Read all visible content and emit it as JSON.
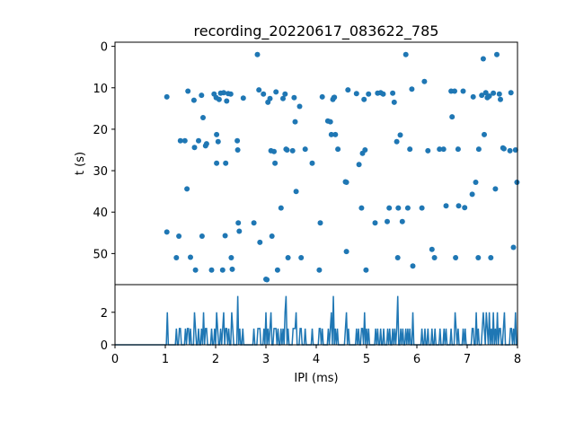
{
  "title": "recording_20220617_083622_785",
  "colors": {
    "series": "#1f77b4",
    "axes": "#000000",
    "background": "#ffffff"
  },
  "chart_data": [
    {
      "type": "scatter",
      "xlabel": "",
      "ylabel": "t (s)",
      "xlim": [
        0,
        8
      ],
      "ylim": [
        57.5,
        -1.0
      ],
      "y_inverted": true,
      "yticks": [
        0,
        10,
        20,
        30,
        40,
        50
      ],
      "grid": false,
      "points": [
        [
          1.03,
          12.2
        ],
        [
          1.03,
          44.8
        ],
        [
          1.22,
          51.0
        ],
        [
          1.27,
          45.8
        ],
        [
          1.3,
          22.8
        ],
        [
          1.39,
          22.8
        ],
        [
          1.43,
          34.4
        ],
        [
          1.45,
          10.8
        ],
        [
          1.5,
          50.9
        ],
        [
          1.57,
          13.0
        ],
        [
          1.58,
          24.4
        ],
        [
          1.6,
          54.0
        ],
        [
          1.66,
          22.8
        ],
        [
          1.72,
          11.8
        ],
        [
          1.73,
          45.8
        ],
        [
          1.75,
          17.2
        ],
        [
          1.8,
          24.0
        ],
        [
          1.82,
          23.5
        ],
        [
          1.92,
          54.0
        ],
        [
          1.97,
          11.5
        ],
        [
          2.01,
          12.4
        ],
        [
          2.02,
          21.3
        ],
        [
          2.02,
          28.2
        ],
        [
          2.05,
          23.0
        ],
        [
          2.07,
          12.8
        ],
        [
          2.1,
          11.3
        ],
        [
          2.14,
          54.0
        ],
        [
          2.16,
          11.2
        ],
        [
          2.19,
          45.7
        ],
        [
          2.2,
          28.2
        ],
        [
          2.22,
          13.2
        ],
        [
          2.25,
          11.4
        ],
        [
          2.3,
          11.5
        ],
        [
          2.31,
          51.0
        ],
        [
          2.33,
          53.8
        ],
        [
          2.43,
          22.8
        ],
        [
          2.44,
          25.0
        ],
        [
          2.45,
          42.6
        ],
        [
          2.47,
          44.6
        ],
        [
          2.55,
          12.5
        ],
        [
          2.76,
          42.6
        ],
        [
          2.83,
          2.0
        ],
        [
          2.86,
          10.5
        ],
        [
          2.88,
          47.3
        ],
        [
          2.95,
          11.5
        ],
        [
          3.0,
          56.2
        ],
        [
          3.02,
          56.3
        ],
        [
          3.04,
          13.5
        ],
        [
          3.08,
          12.6
        ],
        [
          3.1,
          25.2
        ],
        [
          3.12,
          45.8
        ],
        [
          3.16,
          25.4
        ],
        [
          3.18,
          28.2
        ],
        [
          3.2,
          11.0
        ],
        [
          3.23,
          54.0
        ],
        [
          3.3,
          39.0
        ],
        [
          3.34,
          12.6
        ],
        [
          3.38,
          11.5
        ],
        [
          3.4,
          24.8
        ],
        [
          3.42,
          25.0
        ],
        [
          3.44,
          51.0
        ],
        [
          3.53,
          25.2
        ],
        [
          3.56,
          12.4
        ],
        [
          3.58,
          18.2
        ],
        [
          3.6,
          35.0
        ],
        [
          3.67,
          14.5
        ],
        [
          3.7,
          51.0
        ],
        [
          3.78,
          24.8
        ],
        [
          3.92,
          28.2
        ],
        [
          4.06,
          54.0
        ],
        [
          4.08,
          42.6
        ],
        [
          4.12,
          12.2
        ],
        [
          4.23,
          18.0
        ],
        [
          4.28,
          18.2
        ],
        [
          4.3,
          21.3
        ],
        [
          4.33,
          12.8
        ],
        [
          4.35,
          12.4
        ],
        [
          4.36,
          12.3
        ],
        [
          4.38,
          21.3
        ],
        [
          4.43,
          24.8
        ],
        [
          4.58,
          32.7
        ],
        [
          4.6,
          32.8
        ],
        [
          4.6,
          49.5
        ],
        [
          4.63,
          10.5
        ],
        [
          4.8,
          11.4
        ],
        [
          4.85,
          28.5
        ],
        [
          4.9,
          39.0
        ],
        [
          4.92,
          25.8
        ],
        [
          4.95,
          12.8
        ],
        [
          4.97,
          25.0
        ],
        [
          4.99,
          54.0
        ],
        [
          5.04,
          11.5
        ],
        [
          5.17,
          42.6
        ],
        [
          5.22,
          11.3
        ],
        [
          5.28,
          11.2
        ],
        [
          5.33,
          11.5
        ],
        [
          5.41,
          42.3
        ],
        [
          5.45,
          39.0
        ],
        [
          5.52,
          11.3
        ],
        [
          5.55,
          13.5
        ],
        [
          5.6,
          23.0
        ],
        [
          5.62,
          51.0
        ],
        [
          5.63,
          39.0
        ],
        [
          5.67,
          21.4
        ],
        [
          5.71,
          42.3
        ],
        [
          5.78,
          2.0
        ],
        [
          5.82,
          39.0
        ],
        [
          5.86,
          24.8
        ],
        [
          5.9,
          10.3
        ],
        [
          5.92,
          53.0
        ],
        [
          6.1,
          39.0
        ],
        [
          6.15,
          8.5
        ],
        [
          6.22,
          25.2
        ],
        [
          6.3,
          49.0
        ],
        [
          6.35,
          51.0
        ],
        [
          6.45,
          24.8
        ],
        [
          6.53,
          24.8
        ],
        [
          6.58,
          38.5
        ],
        [
          6.68,
          10.8
        ],
        [
          6.7,
          17.0
        ],
        [
          6.75,
          10.8
        ],
        [
          6.77,
          51.0
        ],
        [
          6.82,
          24.8
        ],
        [
          6.83,
          38.5
        ],
        [
          6.92,
          10.8
        ],
        [
          6.95,
          38.9
        ],
        [
          7.1,
          35.7
        ],
        [
          7.12,
          12.2
        ],
        [
          7.17,
          32.8
        ],
        [
          7.22,
          51.0
        ],
        [
          7.23,
          24.8
        ],
        [
          7.29,
          11.8
        ],
        [
          7.32,
          3.0
        ],
        [
          7.34,
          21.3
        ],
        [
          7.37,
          11.2
        ],
        [
          7.4,
          12.4
        ],
        [
          7.44,
          12.0
        ],
        [
          7.47,
          51.0
        ],
        [
          7.52,
          11.3
        ],
        [
          7.56,
          34.4
        ],
        [
          7.59,
          2.0
        ],
        [
          7.64,
          11.5
        ],
        [
          7.66,
          12.8
        ],
        [
          7.71,
          24.5
        ],
        [
          7.73,
          24.7
        ],
        [
          7.85,
          25.2
        ],
        [
          7.87,
          11.2
        ],
        [
          7.92,
          48.5
        ],
        [
          7.96,
          25.0
        ],
        [
          7.99,
          32.8
        ]
      ]
    },
    {
      "type": "line",
      "xlabel": "IPI (ms)",
      "ylabel": "",
      "xlim": [
        0,
        8
      ],
      "ylim": [
        0,
        3.7
      ],
      "xticks": [
        0,
        1,
        2,
        3,
        4,
        5,
        6,
        7,
        8
      ],
      "yticks": [
        0,
        2
      ],
      "grid": false,
      "bin_width": 0.02,
      "peaks": [
        [
          1.03,
          2
        ],
        [
          1.22,
          1
        ],
        [
          1.27,
          1
        ],
        [
          1.3,
          1
        ],
        [
          1.39,
          1
        ],
        [
          1.43,
          1
        ],
        [
          1.45,
          1
        ],
        [
          1.5,
          1
        ],
        [
          1.57,
          2
        ],
        [
          1.6,
          1
        ],
        [
          1.66,
          1
        ],
        [
          1.72,
          1
        ],
        [
          1.75,
          2
        ],
        [
          1.8,
          1
        ],
        [
          1.82,
          1
        ],
        [
          1.92,
          1
        ],
        [
          1.97,
          1
        ],
        [
          2.02,
          2
        ],
        [
          2.05,
          1
        ],
        [
          2.1,
          1
        ],
        [
          2.14,
          1
        ],
        [
          2.16,
          2
        ],
        [
          2.19,
          1
        ],
        [
          2.22,
          1
        ],
        [
          2.25,
          1
        ],
        [
          2.31,
          2
        ],
        [
          2.33,
          1
        ],
        [
          2.44,
          3
        ],
        [
          2.47,
          1
        ],
        [
          2.55,
          1
        ],
        [
          2.76,
          1
        ],
        [
          2.83,
          1
        ],
        [
          2.86,
          1
        ],
        [
          2.88,
          1
        ],
        [
          2.95,
          1
        ],
        [
          3.0,
          2
        ],
        [
          3.04,
          1
        ],
        [
          3.08,
          1
        ],
        [
          3.1,
          2
        ],
        [
          3.16,
          1
        ],
        [
          3.18,
          1
        ],
        [
          3.2,
          1
        ],
        [
          3.23,
          1
        ],
        [
          3.3,
          1
        ],
        [
          3.34,
          1
        ],
        [
          3.38,
          2
        ],
        [
          3.4,
          3
        ],
        [
          3.44,
          1
        ],
        [
          3.53,
          1
        ],
        [
          3.56,
          1
        ],
        [
          3.58,
          1
        ],
        [
          3.6,
          2
        ],
        [
          3.67,
          1
        ],
        [
          3.7,
          1
        ],
        [
          3.78,
          1
        ],
        [
          3.92,
          1
        ],
        [
          4.06,
          1
        ],
        [
          4.08,
          1
        ],
        [
          4.12,
          1
        ],
        [
          4.23,
          1
        ],
        [
          4.28,
          1
        ],
        [
          4.3,
          2
        ],
        [
          4.35,
          3
        ],
        [
          4.38,
          1
        ],
        [
          4.43,
          1
        ],
        [
          4.58,
          1
        ],
        [
          4.6,
          2
        ],
        [
          4.63,
          1
        ],
        [
          4.8,
          1
        ],
        [
          4.85,
          1
        ],
        [
          4.9,
          1
        ],
        [
          4.92,
          1
        ],
        [
          4.95,
          1
        ],
        [
          4.97,
          2
        ],
        [
          4.99,
          1
        ],
        [
          5.04,
          1
        ],
        [
          5.17,
          1
        ],
        [
          5.22,
          1
        ],
        [
          5.28,
          1
        ],
        [
          5.33,
          1
        ],
        [
          5.41,
          1
        ],
        [
          5.45,
          1
        ],
        [
          5.52,
          1
        ],
        [
          5.55,
          1
        ],
        [
          5.6,
          1
        ],
        [
          5.62,
          3
        ],
        [
          5.67,
          1
        ],
        [
          5.71,
          1
        ],
        [
          5.78,
          1
        ],
        [
          5.82,
          1
        ],
        [
          5.86,
          1
        ],
        [
          5.92,
          2
        ],
        [
          6.1,
          1
        ],
        [
          6.15,
          1
        ],
        [
          6.22,
          1
        ],
        [
          6.3,
          1
        ],
        [
          6.35,
          1
        ],
        [
          6.45,
          1
        ],
        [
          6.53,
          1
        ],
        [
          6.58,
          1
        ],
        [
          6.68,
          1
        ],
        [
          6.75,
          2
        ],
        [
          6.77,
          1
        ],
        [
          6.82,
          1
        ],
        [
          6.92,
          1
        ],
        [
          6.95,
          1
        ],
        [
          7.1,
          1
        ],
        [
          7.12,
          1
        ],
        [
          7.17,
          2
        ],
        [
          7.22,
          1
        ],
        [
          7.29,
          1
        ],
        [
          7.32,
          2
        ],
        [
          7.34,
          1
        ],
        [
          7.37,
          2
        ],
        [
          7.4,
          1
        ],
        [
          7.44,
          2
        ],
        [
          7.47,
          1
        ],
        [
          7.52,
          2
        ],
        [
          7.56,
          1
        ],
        [
          7.59,
          2
        ],
        [
          7.64,
          1
        ],
        [
          7.66,
          1
        ],
        [
          7.71,
          1
        ],
        [
          7.73,
          2
        ],
        [
          7.85,
          1
        ],
        [
          7.87,
          1
        ],
        [
          7.92,
          1
        ],
        [
          7.96,
          2
        ]
      ]
    }
  ]
}
